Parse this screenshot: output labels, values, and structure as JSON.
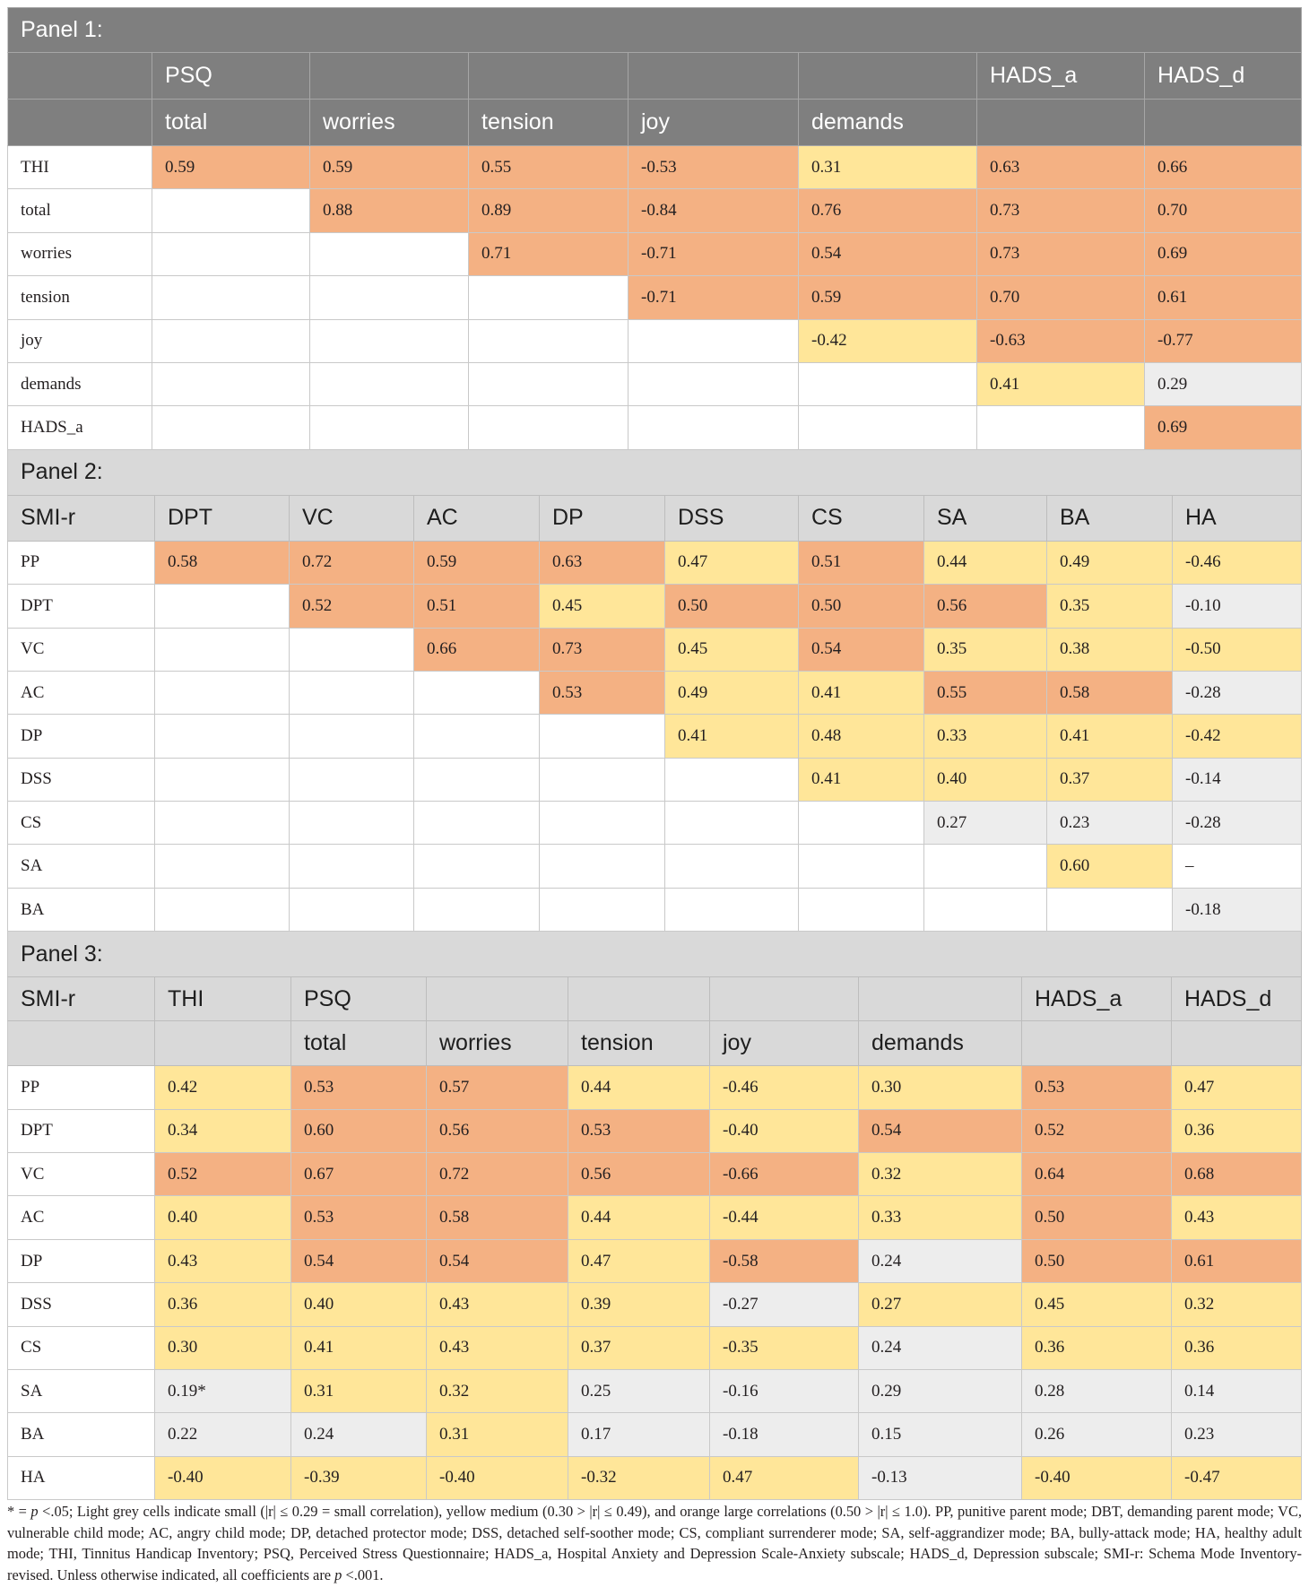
{
  "panels": [
    {
      "title": "Panel 1:",
      "header_rows": [
        [
          null,
          "PSQ",
          null,
          null,
          null,
          null,
          "HADS_a",
          "HADS_d"
        ],
        [
          null,
          "total",
          "worries",
          "tension",
          "joy",
          "demands",
          null,
          null
        ]
      ],
      "rows": [
        {
          "label": "THI",
          "values": [
            "0.59",
            "0.59",
            "0.55",
            "-0.53",
            "0.31",
            "0.63",
            "0.66"
          ],
          "fills": [
            "#f4b183",
            "#f4b183",
            "#f4b183",
            "#f4b183",
            "#ffe699",
            "#f4b183",
            "#f4b183"
          ]
        },
        {
          "label": "total",
          "values": [
            null,
            "0.88",
            "0.89",
            "-0.84",
            "0.76",
            "0.73",
            "0.70"
          ],
          "fills": [
            null,
            "#f4b183",
            "#f4b183",
            "#f4b183",
            "#f4b183",
            "#f4b183",
            "#f4b183"
          ]
        },
        {
          "label": "worries",
          "values": [
            null,
            null,
            "0.71",
            "-0.71",
            "0.54",
            "0.73",
            "0.69"
          ],
          "fills": [
            null,
            null,
            "#f4b183",
            "#f4b183",
            "#f4b183",
            "#f4b183",
            "#f4b183"
          ]
        },
        {
          "label": "tension",
          "values": [
            null,
            null,
            null,
            "-0.71",
            "0.59",
            "0.70",
            "0.61"
          ],
          "fills": [
            null,
            null,
            null,
            "#f4b183",
            "#f4b183",
            "#f4b183",
            "#f4b183"
          ]
        },
        {
          "label": "joy",
          "values": [
            null,
            null,
            null,
            null,
            "-0.42",
            "-0.63",
            "-0.77"
          ],
          "fills": [
            null,
            null,
            null,
            null,
            "#ffe699",
            "#f4b183",
            "#f4b183"
          ]
        },
        {
          "label": "demands",
          "values": [
            null,
            null,
            null,
            null,
            null,
            "0.41",
            "0.29"
          ],
          "fills": [
            null,
            null,
            null,
            null,
            null,
            "#ffe699",
            "#ededed"
          ]
        },
        {
          "label": "HADS_a",
          "values": [
            null,
            null,
            null,
            null,
            null,
            null,
            "0.69"
          ],
          "fills": [
            null,
            null,
            null,
            null,
            null,
            null,
            "#f4b183"
          ]
        }
      ]
    },
    {
      "title": "Panel 2:",
      "header_rows": [
        [
          "SMI-r",
          "DPT",
          "VC",
          "AC",
          "DP",
          "DSS",
          "CS",
          "SA",
          "BA",
          "HA"
        ]
      ],
      "rows": [
        {
          "label": "PP",
          "values": [
            "0.58",
            "0.72",
            "0.59",
            "0.63",
            "0.47",
            "0.51",
            "0.44",
            "0.49",
            "-0.46"
          ],
          "fills": [
            "#f4b183",
            "#f4b183",
            "#f4b183",
            "#f4b183",
            "#ffe699",
            "#f4b183",
            "#ffe699",
            "#ffe699",
            "#ffe699"
          ]
        },
        {
          "label": "DPT",
          "values": [
            null,
            "0.52",
            "0.51",
            "0.45",
            "0.50",
            "0.50",
            "0.56",
            "0.35",
            "-0.10"
          ],
          "fills": [
            null,
            "#f4b183",
            "#f4b183",
            "#ffe699",
            "#f4b183",
            "#f4b183",
            "#f4b183",
            "#ffe699",
            "#ededed"
          ]
        },
        {
          "label": "VC",
          "values": [
            null,
            null,
            "0.66",
            "0.73",
            "0.45",
            "0.54",
            "0.35",
            "0.38",
            "-0.50"
          ],
          "fills": [
            null,
            null,
            "#f4b183",
            "#f4b183",
            "#ffe699",
            "#f4b183",
            "#ffe699",
            "#ffe699",
            "#ffe699"
          ]
        },
        {
          "label": "AC",
          "values": [
            null,
            null,
            null,
            "0.53",
            "0.49",
            "0.41",
            "0.55",
            "0.58",
            "-0.28"
          ],
          "fills": [
            null,
            null,
            null,
            "#f4b183",
            "#ffe699",
            "#ffe699",
            "#f4b183",
            "#f4b183",
            "#ededed"
          ]
        },
        {
          "label": "DP",
          "values": [
            null,
            null,
            null,
            null,
            "0.41",
            "0.48",
            "0.33",
            "0.41",
            "-0.42"
          ],
          "fills": [
            null,
            null,
            null,
            null,
            "#ffe699",
            "#ffe699",
            "#ffe699",
            "#ffe699",
            "#ffe699"
          ]
        },
        {
          "label": "DSS",
          "values": [
            null,
            null,
            null,
            null,
            null,
            "0.41",
            "0.40",
            "0.37",
            "-0.14"
          ],
          "fills": [
            null,
            null,
            null,
            null,
            null,
            "#ffe699",
            "#ffe699",
            "#ffe699",
            "#ededed"
          ]
        },
        {
          "label": "CS",
          "values": [
            null,
            null,
            null,
            null,
            null,
            null,
            "0.27",
            "0.23",
            "-0.28"
          ],
          "fills": [
            null,
            null,
            null,
            null,
            null,
            null,
            "#ededed",
            "#ededed",
            "#ededed"
          ]
        },
        {
          "label": "SA",
          "values": [
            null,
            null,
            null,
            null,
            null,
            null,
            null,
            "0.60",
            "–"
          ],
          "fills": [
            null,
            null,
            null,
            null,
            null,
            null,
            null,
            "#ffe699",
            "#ffffff"
          ]
        },
        {
          "label": "BA",
          "values": [
            null,
            null,
            null,
            null,
            null,
            null,
            null,
            null,
            "-0.18"
          ],
          "fills": [
            null,
            null,
            null,
            null,
            null,
            null,
            null,
            null,
            "#ededed"
          ]
        }
      ]
    },
    {
      "title": "Panel 3:",
      "header_rows": [
        [
          "SMI-r",
          "THI",
          "PSQ",
          null,
          null,
          null,
          null,
          "HADS_a",
          "HADS_d"
        ],
        [
          null,
          null,
          "total",
          "worries",
          "tension",
          "joy",
          "demands",
          null,
          null
        ]
      ],
      "rows": [
        {
          "label": "PP",
          "values": [
            "0.42",
            "0.53",
            "0.57",
            "0.44",
            "-0.46",
            "0.30",
            "0.53",
            "0.47"
          ],
          "fills": [
            "#ffe699",
            "#f4b183",
            "#f4b183",
            "#ffe699",
            "#ffe699",
            "#ffe699",
            "#f4b183",
            "#ffe699"
          ]
        },
        {
          "label": "DPT",
          "values": [
            "0.34",
            "0.60",
            "0.56",
            "0.53",
            "-0.40",
            "0.54",
            "0.52",
            "0.36"
          ],
          "fills": [
            "#ffe699",
            "#f4b183",
            "#f4b183",
            "#f4b183",
            "#ffe699",
            "#f4b183",
            "#f4b183",
            "#ffe699"
          ]
        },
        {
          "label": "VC",
          "values": [
            "0.52",
            "0.67",
            "0.72",
            "0.56",
            "-0.66",
            "0.32",
            "0.64",
            "0.68"
          ],
          "fills": [
            "#f4b183",
            "#f4b183",
            "#f4b183",
            "#f4b183",
            "#f4b183",
            "#ffe699",
            "#f4b183",
            "#f4b183"
          ]
        },
        {
          "label": "AC",
          "values": [
            "0.40",
            "0.53",
            "0.58",
            "0.44",
            "-0.44",
            "0.33",
            "0.50",
            "0.43"
          ],
          "fills": [
            "#ffe699",
            "#f4b183",
            "#f4b183",
            "#ffe699",
            "#ffe699",
            "#ffe699",
            "#f4b183",
            "#ffe699"
          ]
        },
        {
          "label": "DP",
          "values": [
            "0.43",
            "0.54",
            "0.54",
            "0.47",
            "-0.58",
            "0.24",
            "0.50",
            "0.61"
          ],
          "fills": [
            "#ffe699",
            "#f4b183",
            "#f4b183",
            "#ffe699",
            "#f4b183",
            "#ededed",
            "#f4b183",
            "#f4b183"
          ]
        },
        {
          "label": "DSS",
          "values": [
            "0.36",
            "0.40",
            "0.43",
            "0.39",
            "-0.27",
            "0.27",
            "0.45",
            "0.32"
          ],
          "fills": [
            "#ffe699",
            "#ffe699",
            "#ffe699",
            "#ffe699",
            "#ededed",
            "#ffe699",
            "#ffe699",
            "#ffe699"
          ]
        },
        {
          "label": "CS",
          "values": [
            "0.30",
            "0.41",
            "0.43",
            "0.37",
            "-0.35",
            "0.24",
            "0.36",
            "0.36"
          ],
          "fills": [
            "#ffe699",
            "#ffe699",
            "#ffe699",
            "#ffe699",
            "#ffe699",
            "#ededed",
            "#ffe699",
            "#ffe699"
          ]
        },
        {
          "label": "SA",
          "values": [
            "0.19*",
            "0.31",
            "0.32",
            "0.25",
            "-0.16",
            "0.29",
            "0.28",
            "0.14"
          ],
          "fills": [
            "#ededed",
            "#ffe699",
            "#ffe699",
            "#ededed",
            "#ededed",
            "#ededed",
            "#ededed",
            "#ededed"
          ]
        },
        {
          "label": "BA",
          "values": [
            "0.22",
            "0.24",
            "0.31",
            "0.17",
            "-0.18",
            "0.15",
            "0.26",
            "0.23"
          ],
          "fills": [
            "#ededed",
            "#ededed",
            "#ffe699",
            "#ededed",
            "#ededed",
            "#ededed",
            "#ededed",
            "#ededed"
          ]
        },
        {
          "label": "HA",
          "values": [
            "-0.40",
            "-0.39",
            "-0.40",
            "-0.32",
            "0.47",
            "-0.13",
            "-0.40",
            "-0.47"
          ],
          "fills": [
            "#ffe699",
            "#ffe699",
            "#ffe699",
            "#ffe699",
            "#ffe699",
            "#ededed",
            "#ffe699",
            "#ffe699"
          ]
        }
      ]
    }
  ],
  "footnote": {
    "lead": "* = ",
    "p_symbol": "p",
    "body": " <.05; Light grey cells indicate small (|r| ≤ 0.29 = small correlation), yellow medium (0.30 > |r| ≤ 0.49), and orange large correlations (0.50 > |r| ≤ 1.0). PP, punitive parent mode; DBT, demanding parent mode; VC, vulnerable child mode; AC, angry child mode; DP, detached protector mode; DSS, detached self-soother mode; CS, compliant surrenderer mode; SA, self-aggrandizer mode; BA, bully-attack mode; HA, healthy adult mode; THI, Tinnitus Handicap Inventory; PSQ, Perceived Stress Questionnaire; HADS_a, Hospital Anxiety and Depression Scale-Anxiety subscale; HADS_d, Depression subscale; SMI-r: Schema Mode Inventory-revised. Unless otherwise indicated, all coefficients are ",
    "p_symbol_2": "p",
    "tail": " <.001."
  }
}
